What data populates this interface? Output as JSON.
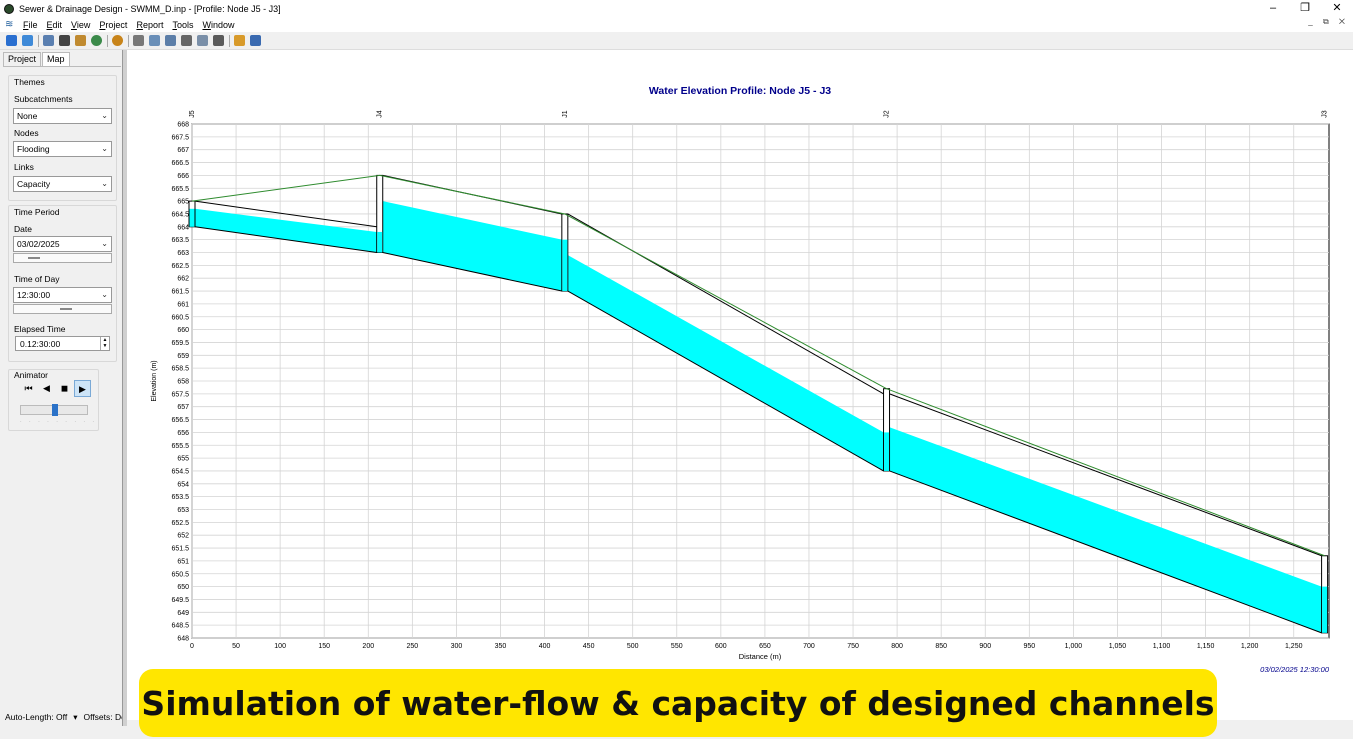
{
  "window": {
    "title": "Sewer & Drainage Design - SWMM_D.inp - [Profile: Node J5 - J3]",
    "min": "–",
    "max": "❐",
    "close": "✕"
  },
  "menu": {
    "items": [
      "File",
      "Edit",
      "View",
      "Project",
      "Report",
      "Tools",
      "Window"
    ],
    "mdi_controls": "_ ⧉ ✕"
  },
  "toolbar": {
    "icons": [
      "new-icon",
      "open-icon",
      "copy-icon",
      "find-icon",
      "query-icon",
      "overview-icon",
      "run-icon",
      "report-icon",
      "graph-icon",
      "profile-icon",
      "table-icon",
      "scatter-icon",
      "stats-icon",
      "options-icon",
      "arrange-icon"
    ]
  },
  "tabs": {
    "project": "Project",
    "map": "Map"
  },
  "themes": {
    "heading": "Themes",
    "subcatchments_label": "Subcatchments",
    "subcatchments_value": "None",
    "nodes_label": "Nodes",
    "nodes_value": "Flooding",
    "links_label": "Links",
    "links_value": "Capacity"
  },
  "time_period": {
    "heading": "Time Period",
    "date_label": "Date",
    "date_value": "03/02/2025",
    "tod_label": "Time of Day",
    "tod_value": "12:30:00",
    "elapsed_label": "Elapsed Time",
    "elapsed_value": "0.12:30:00"
  },
  "animator": {
    "heading": "Animator",
    "speed_fraction": 0.5
  },
  "status": {
    "auto_length": "Auto-Length: Off",
    "offsets": "Offsets: De"
  },
  "caption": "Simulation of water-flow & capacity of designed channels",
  "chart_data": {
    "type": "area",
    "title": "Water Elevation Profile: Node J5 - J3",
    "xlabel": "Distance (m)",
    "ylabel": "Elevation (m)",
    "xlim": [
      0,
      1290
    ],
    "ylim": [
      648,
      668
    ],
    "x_ticks": [
      0,
      50,
      100,
      150,
      200,
      250,
      300,
      350,
      400,
      450,
      500,
      550,
      600,
      650,
      700,
      750,
      800,
      850,
      900,
      950,
      1000,
      1050,
      1100,
      1150,
      1200,
      1250
    ],
    "x_tick_labels": [
      "0",
      "50",
      "100",
      "150",
      "200",
      "250",
      "300",
      "350",
      "400",
      "450",
      "500",
      "550",
      "600",
      "650",
      "700",
      "750",
      "800",
      "850",
      "900",
      "950",
      "1,000",
      "1,050",
      "1,100",
      "1,150",
      "1,200",
      "1,250"
    ],
    "y_ticks": [
      648,
      648.5,
      649,
      649.5,
      650,
      650.5,
      651,
      651.5,
      652,
      652.5,
      653,
      653.5,
      654,
      654.5,
      655,
      655.5,
      656,
      656.5,
      657,
      657.5,
      658,
      658.5,
      659,
      659.5,
      660,
      660.5,
      661,
      661.5,
      662,
      662.5,
      663,
      663.5,
      664,
      664.5,
      665,
      665.5,
      666,
      666.5,
      667,
      667.5,
      668
    ],
    "nodes": [
      {
        "name": "J5",
        "x": 0,
        "invert": 664.0,
        "ground": 665.0
      },
      {
        "name": "J4",
        "x": 213,
        "invert": 663.0,
        "ground": 666.0
      },
      {
        "name": "J1",
        "x": 423,
        "invert": 661.5,
        "ground": 664.5
      },
      {
        "name": "J2",
        "x": 788,
        "invert": 654.5,
        "ground": 657.7
      },
      {
        "name": "J3",
        "x": 1285,
        "invert": 648.2,
        "ground": 651.2
      }
    ],
    "links": [
      {
        "from": "J5",
        "to": "J4",
        "up_invert": 664.0,
        "up_crown": 665.0,
        "down_invert": 663.0,
        "down_crown": 664.0,
        "up_water": 664.7,
        "down_water": 663.8
      },
      {
        "from": "J4",
        "to": "J1",
        "up_invert": 663.0,
        "up_crown": 666.0,
        "down_invert": 661.5,
        "down_crown": 664.5,
        "up_water": 665.0,
        "down_water": 663.5
      },
      {
        "from": "J1",
        "to": "J2",
        "up_invert": 661.5,
        "up_crown": 664.5,
        "down_invert": 654.5,
        "down_crown": 657.5,
        "up_water": 662.9,
        "down_water": 656.0
      },
      {
        "from": "J2",
        "to": "J3",
        "up_invert": 654.5,
        "up_crown": 657.5,
        "down_invert": 648.2,
        "down_crown": 651.2,
        "up_water": 656.2,
        "down_water": 650.0
      }
    ],
    "ground_line": [
      [
        0,
        665.0
      ],
      [
        213,
        666.0
      ],
      [
        423,
        664.5
      ],
      [
        788,
        657.7
      ],
      [
        1285,
        651.2
      ]
    ],
    "timestamp": "03/02/2025 12:30:00",
    "colors": {
      "water": "#00ffff",
      "ground": "#2e8b2e",
      "title": "#00008b",
      "timestamp": "#00008b"
    }
  }
}
